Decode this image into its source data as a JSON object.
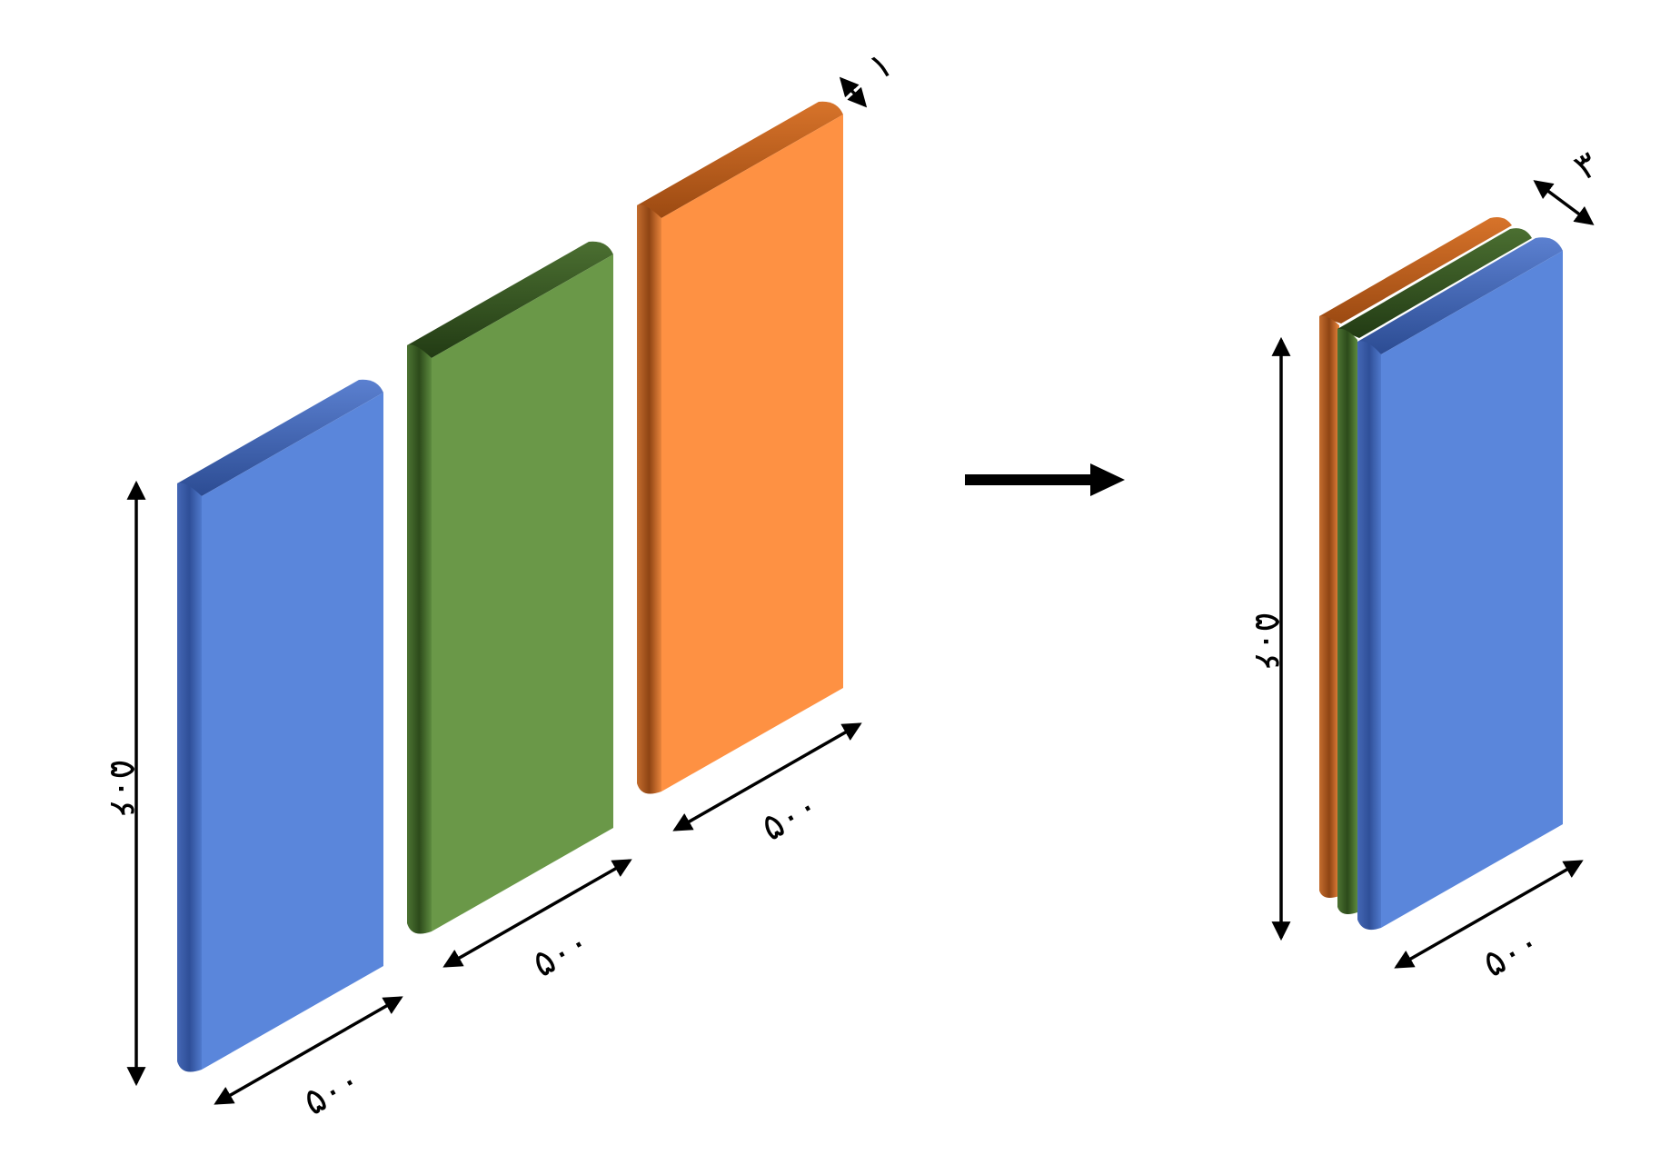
{
  "colors": {
    "background": "#ffffff",
    "ink": "#000000",
    "blue": {
      "front": "#5a86db",
      "side": "#2e4f99",
      "top": "#3f66b8"
    },
    "green": {
      "front": "#6a9848",
      "side": "#33541f",
      "top": "#2b4719"
    },
    "orange": {
      "front": "#fe9143",
      "side": "#a3501a",
      "top": "#b85814"
    }
  },
  "left_group": {
    "height_label": "۵۰۶",
    "blue_width_label": "۵۰۰",
    "green_width_label": "۵۰۰",
    "orange_width_label": "۵۰۰",
    "thickness_label": "۱"
  },
  "transform_arrow": {
    "icon": "arrow-right-icon"
  },
  "right_group": {
    "height_label": "۵۰۶",
    "width_label": "۵۰۰",
    "thickness_label": "۳"
  }
}
